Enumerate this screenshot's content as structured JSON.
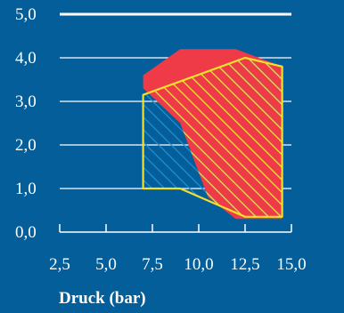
{
  "chart_data": {
    "type": "area",
    "title": "",
    "xlabel": "Druck (bar)",
    "ylabel": "",
    "x_tick_labels": [
      "2,5",
      "5,0",
      "7,5",
      "10,0",
      "12,5",
      "15,0"
    ],
    "y_tick_labels": [
      "0,0",
      "1,0",
      "2,0",
      "3,0",
      "4,0",
      "5,0"
    ],
    "xlim": [
      2.5,
      15.0
    ],
    "ylim": [
      0.0,
      5.0
    ],
    "grid": "horizontal",
    "series": [
      {
        "color": "#ef3a47",
        "fill": "solid",
        "polygon": [
          [
            7.0,
            3.6
          ],
          [
            9.0,
            4.2
          ],
          [
            12.0,
            4.2
          ],
          [
            14.5,
            3.8
          ],
          [
            14.5,
            0.3
          ],
          [
            12.0,
            0.3
          ],
          [
            10.5,
            0.8
          ],
          [
            9.0,
            2.5
          ],
          [
            7.0,
            3.3
          ]
        ]
      },
      {
        "color": "#f2e02a",
        "fill": "hatched",
        "polygon": [
          [
            7.0,
            3.15
          ],
          [
            12.5,
            4.0
          ],
          [
            14.5,
            3.8
          ],
          [
            14.5,
            0.35
          ],
          [
            12.5,
            0.35
          ],
          [
            9.0,
            1.0
          ],
          [
            7.0,
            1.0
          ]
        ]
      }
    ],
    "colors": {
      "background": "#035e99",
      "hatch_blue": "#1f8fd2",
      "text": "#ffffff"
    }
  }
}
